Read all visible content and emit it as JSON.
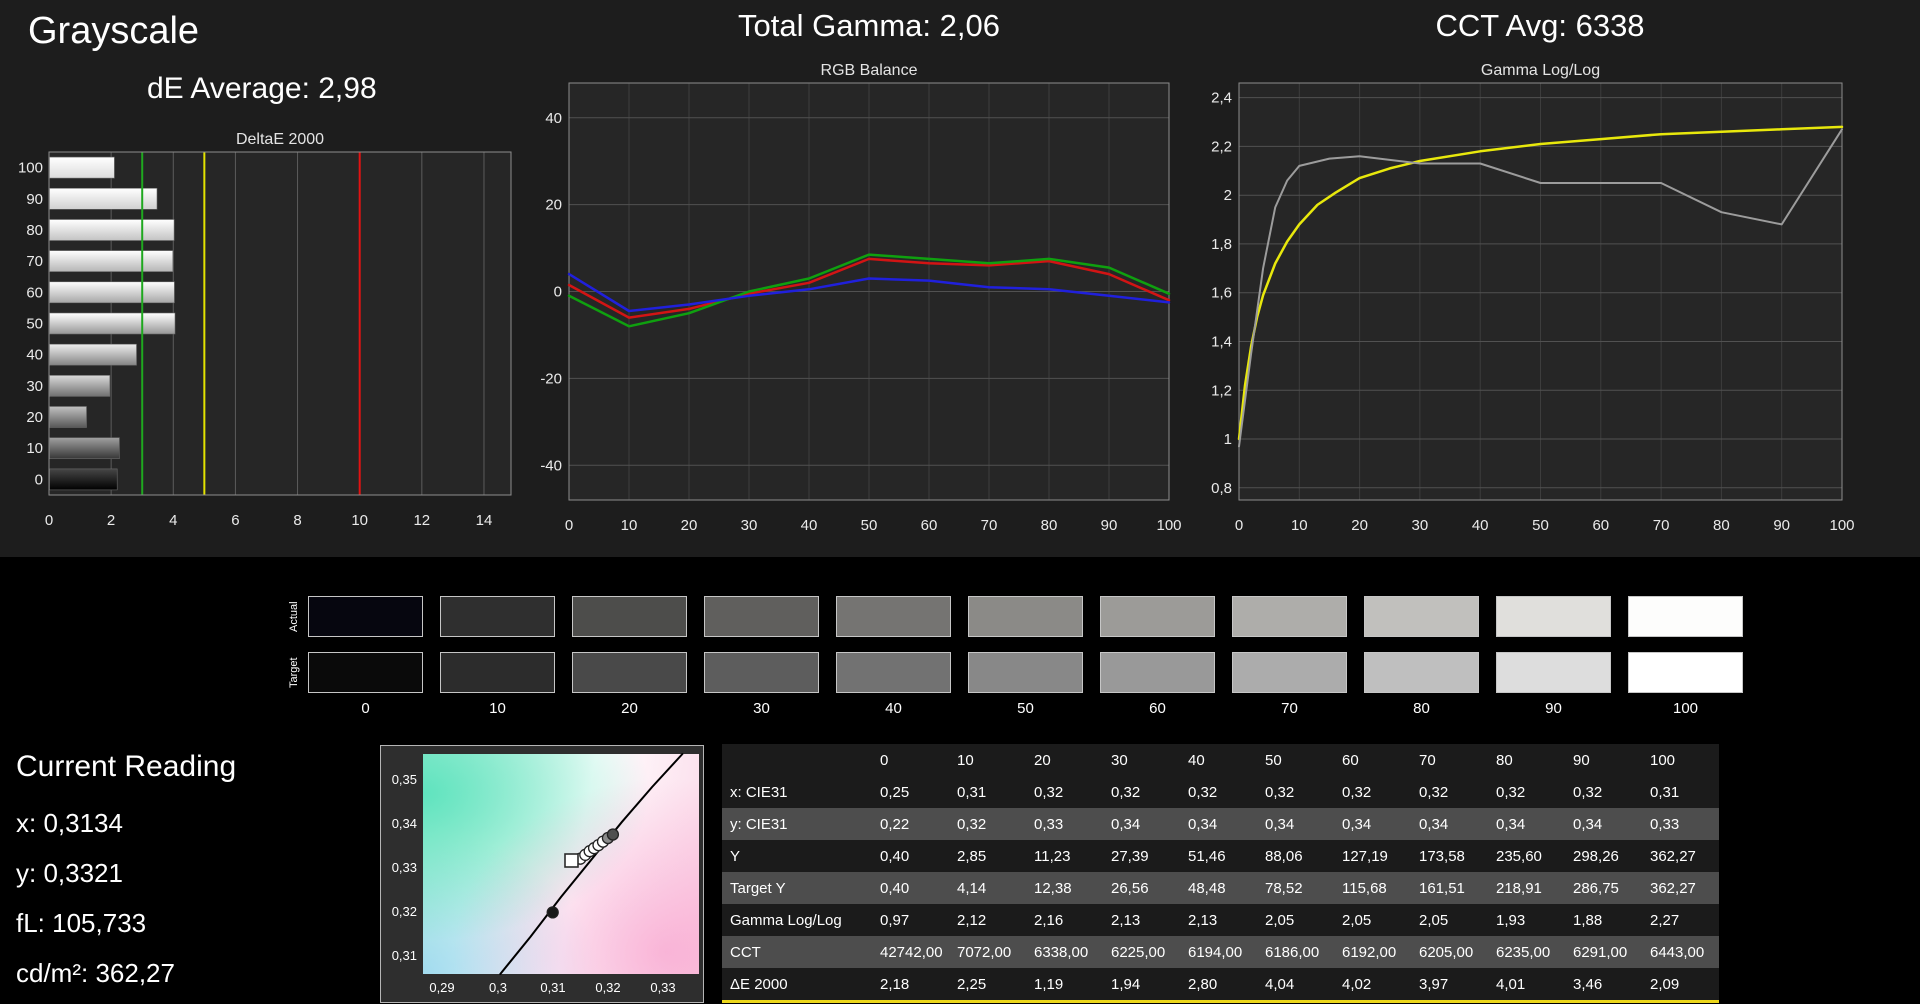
{
  "header": {
    "grayscale_title": "Grayscale",
    "de_average": "dE Average: 2,98",
    "total_gamma": "Total Gamma: 2,06",
    "cct_avg": "CCT Avg: 6338"
  },
  "chart_data": [
    {
      "id": "deltae",
      "type": "bar",
      "orientation": "horizontal",
      "title": "DeltaE 2000",
      "categories": [
        100,
        90,
        80,
        70,
        60,
        50,
        40,
        30,
        20,
        10,
        0
      ],
      "values": [
        2.09,
        3.46,
        4.01,
        3.97,
        4.02,
        4.04,
        2.8,
        1.94,
        1.19,
        2.25,
        2.18
      ],
      "xlim": [
        0,
        14.87
      ],
      "xlabel_ticks": [
        0,
        2,
        4,
        6,
        8,
        10,
        12,
        14
      ],
      "grid_ticks": [
        2,
        4,
        6,
        8,
        12,
        14
      ],
      "ref_lines": [
        {
          "x": 3,
          "color": "#1fa81f"
        },
        {
          "x": 5,
          "color": "#e3e300"
        },
        {
          "x": 10,
          "color": "#e31212"
        }
      ]
    },
    {
      "id": "rgb_balance",
      "type": "line",
      "title": "RGB Balance",
      "x": [
        0,
        10,
        20,
        30,
        40,
        50,
        60,
        70,
        80,
        90,
        100
      ],
      "x_ticks": [
        0,
        10,
        20,
        30,
        40,
        50,
        60,
        70,
        80,
        90,
        100
      ],
      "y_ticks": [
        40,
        20,
        0,
        -20,
        -40
      ],
      "xlim": [
        0,
        100
      ],
      "ylim": [
        -48,
        48
      ],
      "series": [
        {
          "name": "red",
          "color": "#d21414",
          "values": [
            1.5,
            -6,
            -4,
            -0.5,
            2,
            7.5,
            6.5,
            6,
            7,
            4,
            -2
          ]
        },
        {
          "name": "green",
          "color": "#0fa00f",
          "values": [
            -1,
            -8,
            -5,
            0,
            3,
            8.5,
            7.5,
            6.5,
            7.5,
            5.5,
            -0.5
          ]
        },
        {
          "name": "blue",
          "color": "#2020dc",
          "values": [
            4,
            -4.5,
            -3,
            -1,
            0.5,
            3,
            2.5,
            1,
            0.5,
            -1,
            -2.5
          ]
        }
      ]
    },
    {
      "id": "gamma_loglog",
      "type": "line",
      "title": "Gamma Log/Log",
      "x_ticks": [
        0,
        10,
        20,
        30,
        40,
        50,
        60,
        70,
        80,
        90,
        100
      ],
      "y_ticks": [
        2.4,
        2.2,
        2,
        1.8,
        1.6,
        1.4,
        1.2,
        1,
        0.8
      ],
      "y_tick_labels": [
        "2,4",
        "2,2",
        "2",
        "1,8",
        "1,6",
        "1,4",
        "1,2",
        "1",
        "0,8"
      ],
      "xlim": [
        0,
        100
      ],
      "ylim": [
        0.75,
        2.46
      ],
      "series": [
        {
          "name": "target-gamma",
          "color": "#e8e80c",
          "width": 2.5,
          "x": [
            0,
            1,
            2,
            3,
            4,
            6,
            8,
            10,
            13,
            16,
            20,
            25,
            30,
            40,
            50,
            60,
            70,
            80,
            90,
            100
          ],
          "values": [
            1.0,
            1.22,
            1.38,
            1.5,
            1.59,
            1.72,
            1.81,
            1.88,
            1.96,
            2.01,
            2.07,
            2.11,
            2.14,
            2.18,
            2.21,
            2.23,
            2.25,
            2.26,
            2.27,
            2.28
          ]
        },
        {
          "name": "measured-gamma",
          "color": "#9c9c9c",
          "width": 2,
          "x": [
            0,
            2,
            4,
            6,
            8,
            10,
            15,
            20,
            30,
            40,
            50,
            60,
            70,
            80,
            90,
            100
          ],
          "values": [
            0.97,
            1.35,
            1.7,
            1.95,
            2.06,
            2.12,
            2.15,
            2.16,
            2.13,
            2.13,
            2.05,
            2.05,
            2.05,
            1.93,
            1.88,
            2.27
          ]
        }
      ]
    },
    {
      "id": "cie_scatter",
      "type": "scatter",
      "x_ticks": [
        0.29,
        0.3,
        0.31,
        0.32,
        0.33
      ],
      "x_tick_labels": [
        "0,29",
        "0,3",
        "0,31",
        "0,32",
        "0,33"
      ],
      "y_ticks": [
        0.35,
        0.34,
        0.33,
        0.32,
        0.31
      ],
      "y_tick_labels": [
        "0,35",
        "0,34",
        "0,33",
        "0,32",
        "0,31"
      ],
      "xlim": [
        0.2865,
        0.3365
      ],
      "ylim": [
        0.306,
        0.356
      ],
      "locus": [
        [
          0.3005,
          0.306
        ],
        [
          0.306,
          0.3145
        ],
        [
          0.3115,
          0.3235
        ],
        [
          0.317,
          0.332
        ],
        [
          0.3225,
          0.3405
        ],
        [
          0.328,
          0.3485
        ],
        [
          0.3335,
          0.356
        ]
      ],
      "points": [
        [
          0.31,
          0.32,
          "#181818"
        ],
        [
          0.315,
          0.3322
        ],
        [
          0.3159,
          0.3331
        ],
        [
          0.3167,
          0.3339
        ],
        [
          0.3175,
          0.3346
        ],
        [
          0.3183,
          0.3353
        ],
        [
          0.3191,
          0.3361
        ],
        [
          0.32,
          0.3369,
          "#8a8a8a"
        ],
        [
          0.3209,
          0.3377,
          "#4f4f4f"
        ]
      ],
      "reading_marker": {
        "x": 0.3134,
        "y": 0.3318
      }
    }
  ],
  "swatches": {
    "row_labels": [
      "Actual",
      "Target"
    ],
    "columns": [
      "0",
      "10",
      "20",
      "30",
      "40",
      "50",
      "60",
      "70",
      "80",
      "90",
      "100"
    ],
    "actual_colors": [
      "#06060f",
      "#2f2f2f",
      "#4d4d4b",
      "#605f5d",
      "#757472",
      "#8b8a87",
      "#9c9b98",
      "#aeadaa",
      "#c1c0bd",
      "#e0dfdc",
      "#fdfdfc"
    ],
    "target_colors": [
      "#0a0a0a",
      "#2c2c2c",
      "#494949",
      "#5d5d5d",
      "#727272",
      "#888888",
      "#999999",
      "#acacac",
      "#bfbfbf",
      "#dddddd",
      "#ffffff"
    ]
  },
  "current_reading": {
    "title": "Current Reading",
    "lines": [
      "x: 0,3134",
      "y: 0,3321",
      "fL: 105,733",
      "cd/m²: 362,27"
    ]
  },
  "table": {
    "columns": [
      "0",
      "10",
      "20",
      "30",
      "40",
      "50",
      "60",
      "70",
      "80",
      "90",
      "100"
    ],
    "rows": [
      {
        "label": "x: CIE31",
        "values": [
          "0,25",
          "0,31",
          "0,32",
          "0,32",
          "0,32",
          "0,32",
          "0,32",
          "0,32",
          "0,32",
          "0,32",
          "0,31"
        ]
      },
      {
        "label": "y: CIE31",
        "values": [
          "0,22",
          "0,32",
          "0,33",
          "0,34",
          "0,34",
          "0,34",
          "0,34",
          "0,34",
          "0,34",
          "0,34",
          "0,33"
        ]
      },
      {
        "label": "Y",
        "values": [
          "0,40",
          "2,85",
          "11,23",
          "27,39",
          "51,46",
          "88,06",
          "127,19",
          "173,58",
          "235,60",
          "298,26",
          "362,27"
        ]
      },
      {
        "label": "Target Y",
        "values": [
          "0,40",
          "4,14",
          "12,38",
          "26,56",
          "48,48",
          "78,52",
          "115,68",
          "161,51",
          "218,91",
          "286,75",
          "362,27"
        ]
      },
      {
        "label": "Gamma Log/Log",
        "values": [
          "0,97",
          "2,12",
          "2,16",
          "2,13",
          "2,13",
          "2,05",
          "2,05",
          "2,05",
          "1,93",
          "1,88",
          "2,27"
        ]
      },
      {
        "label": "CCT",
        "values": [
          "42742,00",
          "7072,00",
          "6338,00",
          "6225,00",
          "6194,00",
          "6186,00",
          "6192,00",
          "6205,00",
          "6235,00",
          "6291,00",
          "6443,00"
        ]
      },
      {
        "label": "ΔE 2000",
        "values": [
          "2,18",
          "2,25",
          "1,19",
          "1,94",
          "2,80",
          "4,04",
          "4,02",
          "3,97",
          "4,01",
          "3,46",
          "2,09"
        ]
      }
    ]
  },
  "colors": {
    "panel_bg": "#1d1d1d",
    "plot_bg": "#262626",
    "table_row_light": "#4d4d4d",
    "table_row_dark": "#1b1b1b",
    "highlight_yellow": "#ecd71c"
  }
}
